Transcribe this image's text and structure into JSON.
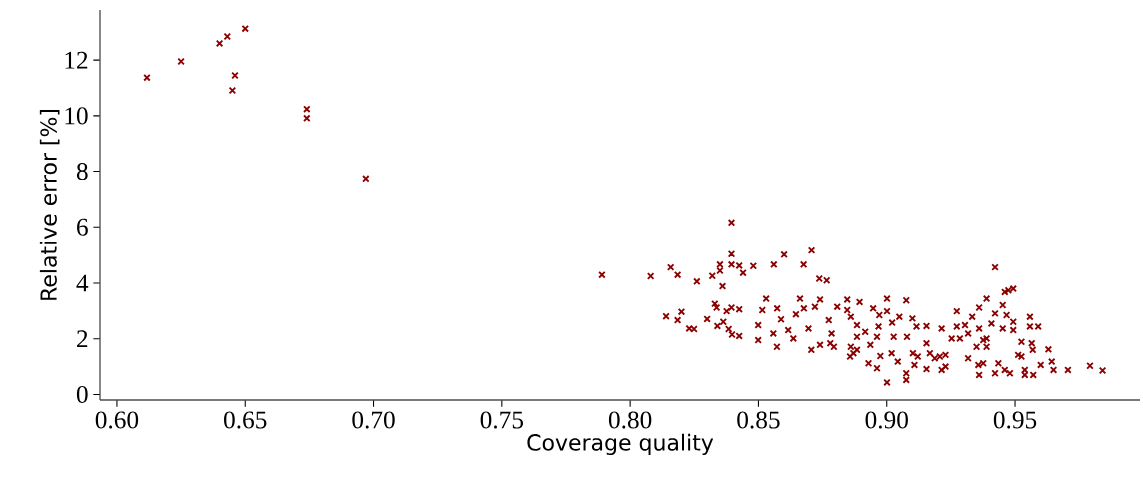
{
  "chart_data": {
    "type": "scatter",
    "xlabel": "Coverage quality",
    "ylabel": "Relative error [%]",
    "xlim": [
      0.5934,
      0.9987
    ],
    "ylim": [
      -0.2,
      13.8
    ],
    "xticks": [
      {
        "value": 0.6,
        "label": "0.60"
      },
      {
        "value": 0.65,
        "label": "0.65"
      },
      {
        "value": 0.7,
        "label": "0.70"
      },
      {
        "value": 0.75,
        "label": "0.75"
      },
      {
        "value": 0.8,
        "label": "0.80"
      },
      {
        "value": 0.85,
        "label": "0.85"
      },
      {
        "value": 0.9,
        "label": "0.90"
      },
      {
        "value": 0.95,
        "label": "0.95"
      }
    ],
    "yticks": [
      0,
      2,
      4,
      6,
      8,
      10,
      12
    ],
    "grid": false,
    "marker": "cross",
    "series": [
      {
        "color": "#8b0000",
        "x": [
          0.6117,
          0.625,
          0.64,
          0.643,
          0.65,
          0.646,
          0.645,
          0.674,
          0.674,
          0.697,
          0.789,
          0.8395,
          0.808,
          0.8158,
          0.8185,
          0.826,
          0.832,
          0.835,
          0.835,
          0.836,
          0.8395,
          0.8395,
          0.8425,
          0.844,
          0.848,
          0.856,
          0.86,
          0.8676,
          0.8707,
          0.8737,
          0.8766,
          0.814,
          0.8185,
          0.82,
          0.823,
          0.8249,
          0.83,
          0.833,
          0.8337,
          0.834,
          0.8363,
          0.8376,
          0.8395,
          0.8384,
          0.8397,
          0.8425,
          0.8425,
          0.8499,
          0.8499,
          0.8515,
          0.853,
          0.8573,
          0.8588,
          0.8558,
          0.8572,
          0.8616,
          0.8646,
          0.8662,
          0.8677,
          0.8636,
          0.8695,
          0.872,
          0.874,
          0.8706,
          0.874,
          0.8774,
          0.8785,
          0.8794,
          0.8807,
          0.8846,
          0.8846,
          0.886,
          0.886,
          0.8884,
          0.887,
          0.878,
          0.8894,
          0.9001,
          0.9076,
          0.8947,
          0.9001,
          0.8971,
          0.9049,
          0.91,
          0.9021,
          0.9116,
          0.9155,
          0.8884,
          0.8916,
          0.8968,
          0.8962,
          0.9027,
          0.9079,
          0.8884,
          0.8857,
          0.8936,
          0.8975,
          0.8929,
          0.8962,
          0.9001,
          0.9019,
          0.9043,
          0.9076,
          0.9076,
          0.9102,
          0.9108,
          0.9121,
          0.9155,
          0.9155,
          0.9168,
          0.9187,
          0.9207,
          0.9214,
          0.9229,
          0.9229,
          0.9214,
          0.9253,
          0.9273,
          0.9273,
          0.9285,
          0.9305,
          0.9317,
          0.9317,
          0.9333,
          0.936,
          0.936,
          0.935,
          0.9357,
          0.936,
          0.9376,
          0.9389,
          0.9389,
          0.9389,
          0.9376,
          0.9408,
          0.9422,
          0.9422,
          0.9422,
          0.9435,
          0.9452,
          0.9452,
          0.946,
          0.9474,
          0.9493,
          0.9467,
          0.9493,
          0.9493,
          0.946,
          0.948,
          0.9512,
          0.9525,
          0.9525,
          0.9538,
          0.9538,
          0.9558,
          0.9558,
          0.9565,
          0.9569,
          0.9571,
          0.959,
          0.963,
          0.96,
          0.9643,
          0.965,
          0.9706,
          0.9792,
          0.9841
        ],
        "values": [
          11.37,
          11.95,
          12.6,
          12.85,
          13.13,
          11.45,
          10.91,
          10.24,
          9.91,
          7.74,
          4.3,
          6.16,
          4.25,
          4.57,
          4.3,
          4.06,
          4.26,
          4.67,
          4.45,
          3.89,
          5.05,
          4.67,
          4.63,
          4.37,
          4.62,
          4.67,
          5.03,
          4.67,
          5.18,
          4.16,
          4.1,
          2.81,
          2.67,
          2.97,
          2.37,
          2.35,
          2.71,
          3.26,
          3.12,
          2.46,
          2.61,
          2.99,
          3.12,
          2.35,
          2.15,
          3.06,
          2.1,
          2.49,
          1.95,
          3.03,
          3.44,
          3.09,
          2.7,
          2.19,
          1.71,
          2.31,
          2.88,
          3.44,
          3.09,
          2.01,
          2.37,
          3.15,
          3.41,
          1.6,
          1.78,
          2.67,
          2.19,
          1.71,
          3.15,
          3.41,
          3.03,
          2.79,
          1.71,
          2.07,
          1.48,
          1.84,
          3.32,
          3.44,
          3.38,
          3.09,
          2.99,
          2.85,
          2.79,
          2.73,
          2.58,
          2.44,
          2.46,
          2.49,
          2.25,
          2.44,
          2.07,
          2.07,
          2.07,
          1.6,
          1.36,
          1.78,
          1.38,
          1.12,
          0.94,
          0.43,
          1.48,
          1.18,
          0.76,
          0.52,
          1.48,
          1.06,
          1.36,
          1.84,
          0.91,
          1.48,
          1.3,
          1.36,
          0.88,
          1.42,
          1.0,
          2.37,
          2.01,
          2.99,
          2.44,
          2.01,
          2.49,
          1.3,
          2.19,
          2.79,
          3.12,
          2.37,
          1.71,
          1.06,
          0.7,
          1.95,
          3.44,
          2.01,
          1.71,
          1.12,
          2.55,
          4.57,
          2.91,
          0.76,
          1.12,
          3.21,
          2.37,
          3.68,
          3.74,
          3.8,
          2.85,
          2.61,
          2.31,
          0.88,
          0.76,
          1.42,
          1.89,
          1.36,
          0.88,
          0.7,
          2.79,
          2.44,
          1.84,
          1.6,
          0.7,
          2.44,
          1.62,
          1.06,
          1.18,
          0.88,
          0.88,
          1.03,
          0.86
        ]
      }
    ]
  }
}
